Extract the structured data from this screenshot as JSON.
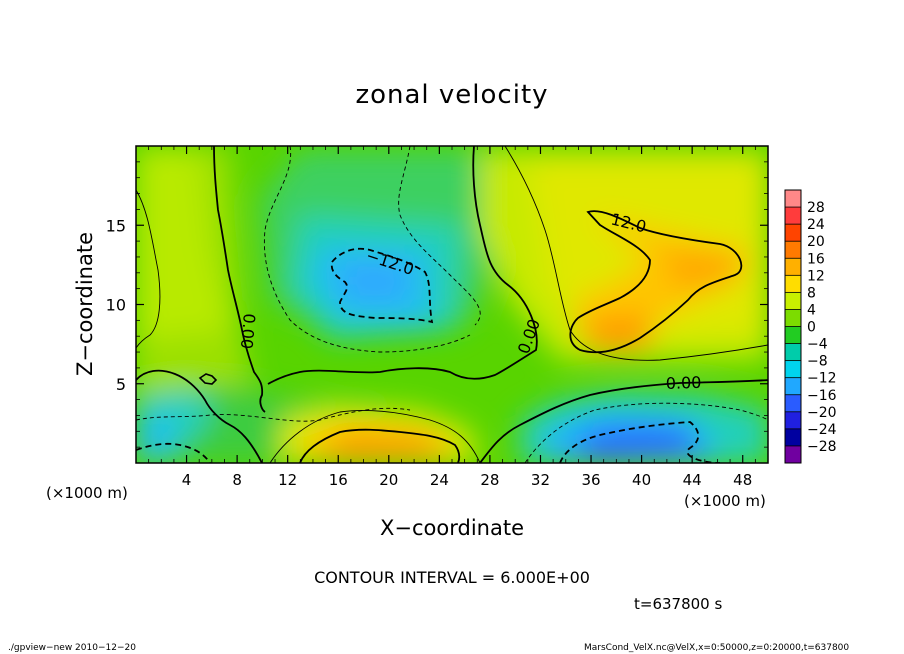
{
  "chart_data": {
    "type": "heatmap",
    "title": "zonal velocity",
    "xlabel": "X−coordinate",
    "ylabel": "Z−coordinate",
    "x_scale_note": "(×1000 m)",
    "z_scale_note": "(×1000 m)",
    "xlim": [
      0,
      50
    ],
    "ylim": [
      0,
      20
    ],
    "x_ticks": [
      "4",
      "8",
      "12",
      "16",
      "20",
      "24",
      "28",
      "32",
      "36",
      "40",
      "44",
      "48"
    ],
    "y_ticks": [
      "5",
      "10",
      "15"
    ],
    "colorbar": {
      "levels": [
        "28",
        "24",
        "20",
        "16",
        "12",
        "8",
        "4",
        "0",
        "−4",
        "−8",
        "−12",
        "−16",
        "−20",
        "−24",
        "−28"
      ],
      "colors": [
        "#ff8888",
        "#ff3c3c",
        "#ff4400",
        "#ff7a00",
        "#ffb000",
        "#ffdd00",
        "#c8f000",
        "#7cdc00",
        "#22cc22",
        "#00ccaa",
        "#00d4ee",
        "#20a8ff",
        "#2a5cff",
        "#2020e0",
        "#0000a0",
        "#7000a0"
      ]
    },
    "contour_interval": "CONTOUR INTERVAL = 6.000E+00",
    "contour_labels": [
      "12.0",
      "−12.0",
      "0.00",
      "0.00",
      "0.00"
    ],
    "field_features": [
      {
        "kind": "max",
        "x_km": 38,
        "z_km": 8.5,
        "value": 15
      },
      {
        "kind": "max",
        "x_km": 44,
        "z_km": 12.5,
        "value": 14
      },
      {
        "kind": "max",
        "x_km": 20,
        "z_km": 1,
        "value": 15
      },
      {
        "kind": "min",
        "x_km": 19,
        "z_km": 11.5,
        "value": -13
      },
      {
        "kind": "min",
        "x_km": 40,
        "z_km": 1.5,
        "value": -18
      },
      {
        "kind": "min",
        "x_km": 1,
        "z_km": 3,
        "value": -10
      }
    ]
  },
  "time_label": "t=637800 s",
  "footer": {
    "left": "./gpview−new   2010−12−20",
    "right": "MarsCond_VelX.nc@VelX,x=0:50000,z=0:20000,t=637800"
  }
}
